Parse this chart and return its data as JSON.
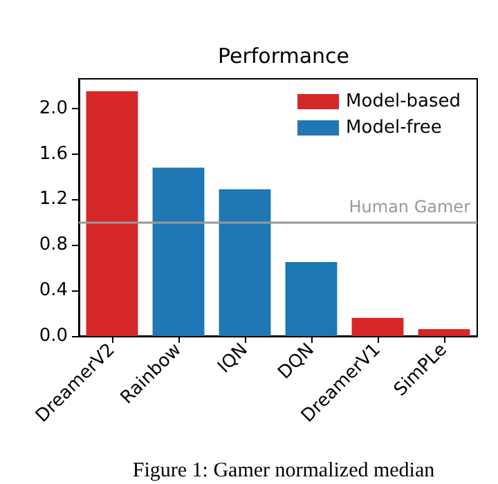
{
  "chart_data": {
    "type": "bar",
    "title": "Performance",
    "categories": [
      "DreamerV2",
      "Rainbow",
      "IQN",
      "DQN",
      "DreamerV1",
      "SimPLe"
    ],
    "series": [
      {
        "name": "Model-based",
        "color": "#d62728",
        "values": [
          2.15,
          null,
          null,
          null,
          0.16,
          0.06
        ]
      },
      {
        "name": "Model-free",
        "color": "#1f77b4",
        "values": [
          null,
          1.48,
          1.29,
          0.65,
          null,
          null
        ]
      }
    ],
    "ylim": [
      0,
      2.26
    ],
    "yticks": [
      {
        "value": 0,
        "label": "0.0"
      },
      {
        "value": 0.4,
        "label": "0.4"
      },
      {
        "value": 0.8,
        "label": "0.8"
      },
      {
        "value": 1.2,
        "label": "1.2"
      },
      {
        "value": 1.6,
        "label": "1.6"
      },
      {
        "value": 2,
        "label": "2.0"
      }
    ],
    "ref_lines": [
      {
        "axis": "y",
        "value": 1,
        "label": "Human Gamer",
        "color": "#999999"
      }
    ],
    "annotations": [
      "Figure 1: Gamer normalized median"
    ],
    "legend": "top right",
    "grid": false
  }
}
